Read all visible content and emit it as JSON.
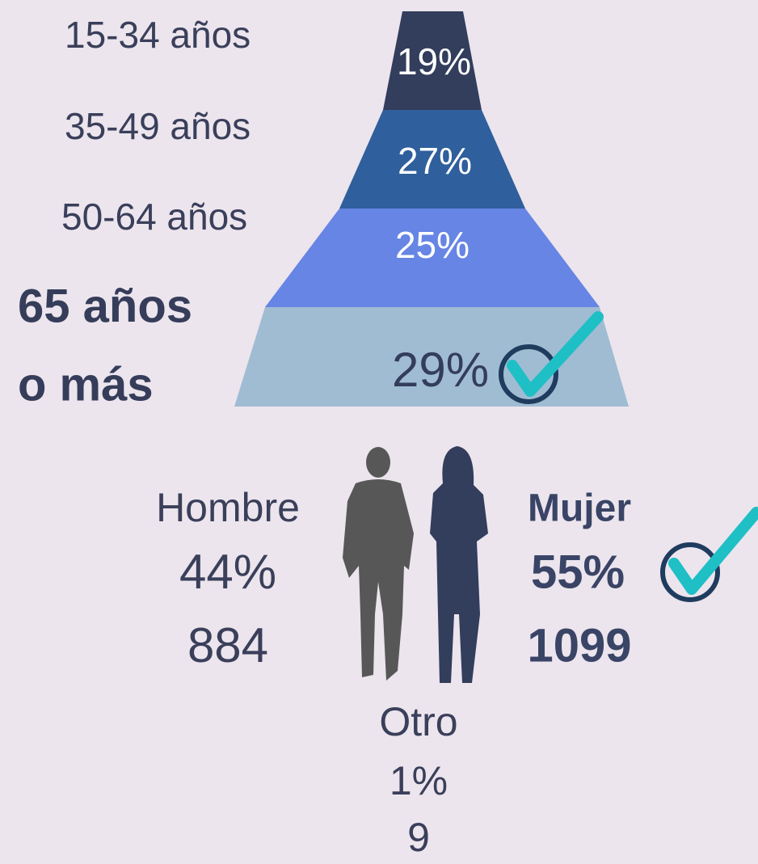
{
  "age_groups": [
    {
      "label": "15-34 años",
      "share": "19%"
    },
    {
      "label": "35-49 años",
      "share": "27%"
    },
    {
      "label": "50-64 años",
      "share": "25%"
    },
    {
      "label": [
        "65 años",
        "o más"
      ],
      "share": "29%"
    }
  ],
  "gender": [
    {
      "label": "Hombre",
      "share": "44%",
      "count": "884"
    },
    {
      "label": "Mujer",
      "share": "55%",
      "count": "1099"
    },
    {
      "label": "Otro",
      "share": "1%",
      "count": "9"
    }
  ]
}
